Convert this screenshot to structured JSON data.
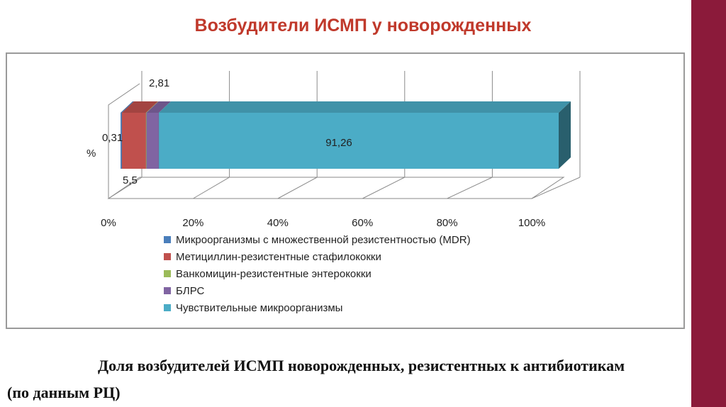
{
  "slide": {
    "title": "Возбудители ИСМП у новорожденных",
    "caption_line1": "Доля возбудителей ИСМП новорожденных, резистентных к антибиотикам",
    "caption_line2": "(по данным РЦ)",
    "accent_color": "#8b1a3a",
    "title_color": "#c0392b"
  },
  "chart_data": {
    "type": "bar",
    "orientation": "horizontal",
    "stacked": true,
    "three_d": true,
    "ylabel": "%",
    "xlim": [
      0,
      100
    ],
    "x_ticks": [
      "0%",
      "20%",
      "40%",
      "60%",
      "80%",
      "100%"
    ],
    "grid": true,
    "legend_position": "bottom",
    "series": [
      {
        "name": "Микроорганизмы с множественной резистентностью (MDR)",
        "value": 0.31,
        "label": "0,31",
        "color": "#4a7ebb"
      },
      {
        "name": "Метициллин-резистентные стафилококки",
        "value": 5.5,
        "label": "5,5",
        "color": "#c0504d"
      },
      {
        "name": "Ванкомицин-резистентные энтерококки",
        "value": 0.12,
        "label": "",
        "color": "#9bbb59"
      },
      {
        "name": "БЛРС",
        "value": 2.81,
        "label": "2,81",
        "color": "#8064a2"
      },
      {
        "name": "Чувствительные микроорганизмы",
        "value": 91.26,
        "label": "91,26",
        "color": "#4bacc6"
      }
    ]
  }
}
